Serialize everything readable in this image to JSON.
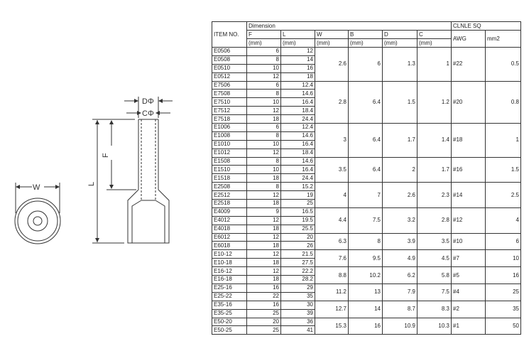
{
  "drawing": {
    "labels": {
      "d": "DΦ",
      "c": "CΦ",
      "f": "F",
      "l": "L",
      "w": "W"
    }
  },
  "table": {
    "item_header": "ITEM NO.",
    "dimension_header": "Dimension",
    "cross_section_header": "CLNLE SQ",
    "columns": [
      "F",
      "L",
      "W",
      "B",
      "D",
      "C"
    ],
    "unit": "(mm)",
    "awg_header": "AWG",
    "mm2_header": "mm2",
    "groups": [
      {
        "W": "2.6",
        "B": "6",
        "D": "1.3",
        "C": "1",
        "AWG": "#22",
        "mm2": "0.5",
        "items": [
          [
            "E0506",
            "6",
            "12"
          ],
          [
            "E0508",
            "8",
            "14"
          ],
          [
            "E0510",
            "10",
            "16"
          ],
          [
            "E0512",
            "12",
            "18"
          ]
        ]
      },
      {
        "W": "2.8",
        "B": "6.4",
        "D": "1.5",
        "C": "1.2",
        "AWG": "#20",
        "mm2": "0.8",
        "items": [
          [
            "E7506",
            "6",
            "12.4"
          ],
          [
            "E7508",
            "8",
            "14.6"
          ],
          [
            "E7510",
            "10",
            "16.4"
          ],
          [
            "E7512",
            "12",
            "18.4"
          ],
          [
            "E7518",
            "18",
            "24.4"
          ]
        ]
      },
      {
        "W": "3",
        "B": "6.4",
        "D": "1.7",
        "C": "1.4",
        "AWG": "#18",
        "mm2": "1",
        "items": [
          [
            "E1006",
            "6",
            "12.4"
          ],
          [
            "E1008",
            "8",
            "14.6"
          ],
          [
            "E1010",
            "10",
            "16.4"
          ],
          [
            "E1012",
            "12",
            "18.4"
          ]
        ]
      },
      {
        "W": "3.5",
        "B": "6.4",
        "D": "2",
        "C": "1.7",
        "AWG": "#16",
        "mm2": "1.5",
        "items": [
          [
            "E1508",
            "8",
            "14.6"
          ],
          [
            "E1510",
            "10",
            "16.4"
          ],
          [
            "E1518",
            "18",
            "24.4"
          ]
        ]
      },
      {
        "W": "4",
        "B": "7",
        "D": "2.6",
        "C": "2.3",
        "AWG": "#14",
        "mm2": "2.5",
        "items": [
          [
            "E2508",
            "8",
            "15.2"
          ],
          [
            "E2512",
            "12",
            "19"
          ],
          [
            "E2518",
            "18",
            "25"
          ]
        ]
      },
      {
        "W": "4.4",
        "B": "7.5",
        "D": "3.2",
        "C": "2.8",
        "AWG": "#12",
        "mm2": "4",
        "items": [
          [
            "E4009",
            "9",
            "16.5"
          ],
          [
            "E4012",
            "12",
            "19.5"
          ],
          [
            "E4018",
            "18",
            "25.5"
          ]
        ]
      },
      {
        "W": "6.3",
        "B": "8",
        "D": "3.9",
        "C": "3.5",
        "AWG": "#10",
        "mm2": "6",
        "items": [
          [
            "E6012",
            "12",
            "20"
          ],
          [
            "E6018",
            "18",
            "26"
          ]
        ]
      },
      {
        "W": "7.6",
        "B": "9.5",
        "D": "4.9",
        "C": "4.5",
        "AWG": "#7",
        "mm2": "10",
        "items": [
          [
            "E10-12",
            "12",
            "21.5"
          ],
          [
            "E10-18",
            "18",
            "27.5"
          ]
        ]
      },
      {
        "W": "8.8",
        "B": "10.2",
        "D": "6.2",
        "C": "5.8",
        "AWG": "#5",
        "mm2": "16",
        "items": [
          [
            "E16-12",
            "12",
            "22.2"
          ],
          [
            "E16-18",
            "18",
            "28.2"
          ]
        ]
      },
      {
        "W": "11.2",
        "B": "13",
        "D": "7.9",
        "C": "7.5",
        "AWG": "#4",
        "mm2": "25",
        "items": [
          [
            "E25-16",
            "16",
            "29"
          ],
          [
            "E25-22",
            "22",
            "35"
          ]
        ]
      },
      {
        "W": "12.7",
        "B": "14",
        "D": "8.7",
        "C": "8.3",
        "AWG": "#2",
        "mm2": "35",
        "items": [
          [
            "E35-16",
            "16",
            "30"
          ],
          [
            "E35-25",
            "25",
            "39"
          ]
        ]
      },
      {
        "W": "15.3",
        "B": "16",
        "D": "10.9",
        "C": "10.3",
        "AWG": "#1",
        "mm2": "50",
        "items": [
          [
            "E50-20",
            "20",
            "36"
          ],
          [
            "E50-25",
            "25",
            "41"
          ]
        ]
      }
    ]
  }
}
